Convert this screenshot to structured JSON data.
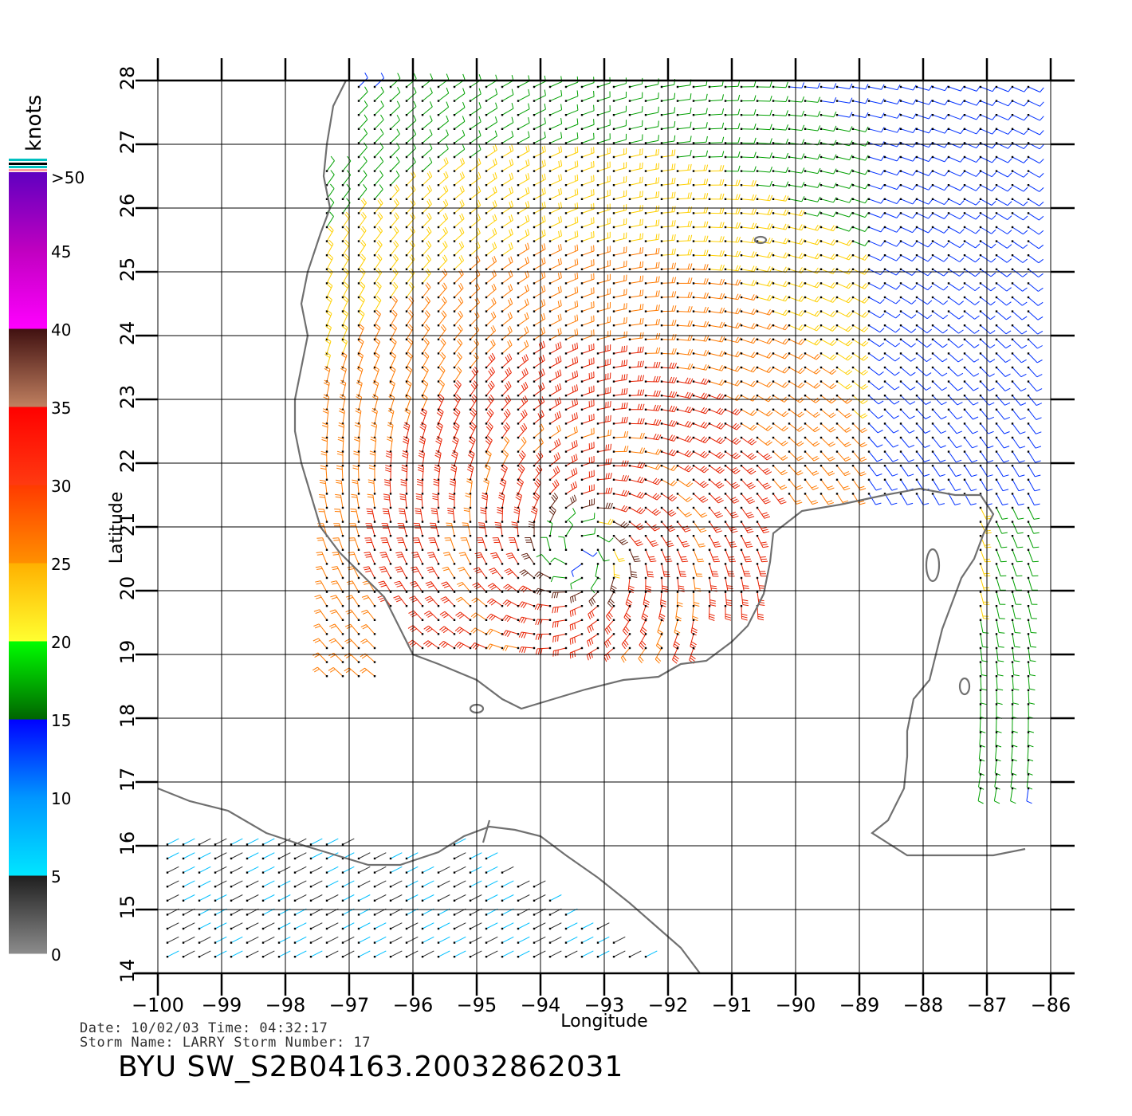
{
  "map": {
    "type": "wind_vector_map",
    "xlabel": "Longitude",
    "ylabel": "Latitude",
    "lon_range": [
      -100,
      -86
    ],
    "lat_range": [
      14,
      28
    ],
    "lon_ticks": [
      "−100",
      "−99",
      "−98",
      "−97",
      "−96",
      "−95",
      "−94",
      "−93",
      "−92",
      "−91",
      "−90",
      "−89",
      "−88",
      "−87",
      "−86"
    ],
    "lat_ticks": [
      "14",
      "15",
      "16",
      "17",
      "18",
      "19",
      "20",
      "21",
      "22",
      "23",
      "24",
      "25",
      "26",
      "27",
      "28"
    ],
    "grid": true,
    "coastline_color": "#707070"
  },
  "colorbar": {
    "units": "knots",
    "labels": [
      "0",
      "5",
      "10",
      "15",
      "20",
      "25",
      "30",
      "35",
      "40",
      "45",
      ">50"
    ],
    "stops": [
      {
        "from": 0,
        "to": 5,
        "colors": [
          "#8c8c8c",
          "#1e1e1e"
        ]
      },
      {
        "from": 5,
        "to": 10,
        "colors": [
          "#00e6ff",
          "#0096ff"
        ]
      },
      {
        "from": 10,
        "to": 15,
        "colors": [
          "#0096ff",
          "#0000ff"
        ]
      },
      {
        "from": 15,
        "to": 20,
        "colors": [
          "#006400",
          "#00ff00"
        ]
      },
      {
        "from": 20,
        "to": 25,
        "colors": [
          "#ffff30",
          "#ffb000"
        ]
      },
      {
        "from": 25,
        "to": 30,
        "colors": [
          "#ff9000",
          "#ff3a00"
        ]
      },
      {
        "from": 30,
        "to": 35,
        "colors": [
          "#ff3a10",
          "#ff0000"
        ]
      },
      {
        "from": 35,
        "to": 40,
        "colors": [
          "#c08060",
          "#401010"
        ]
      },
      {
        "from": 40,
        "to": 45,
        "colors": [
          "#ff00ff",
          "#c000c0"
        ]
      },
      {
        "from": 45,
        "to": 50,
        "colors": [
          "#c000c0",
          "#6000c0"
        ]
      }
    ],
    "cap_colors": [
      "#ff9aa0",
      "#00c0c0"
    ]
  },
  "storm": {
    "center_lon": -93.4,
    "center_lat": 20.6
  },
  "info": {
    "line1": "Date: 10/02/03   Time: 04:32:17",
    "line2": "Storm  Name:  LARRY    Storm  Number:  17",
    "product_id": "BYU  SW_S2B04163.20032862031"
  }
}
